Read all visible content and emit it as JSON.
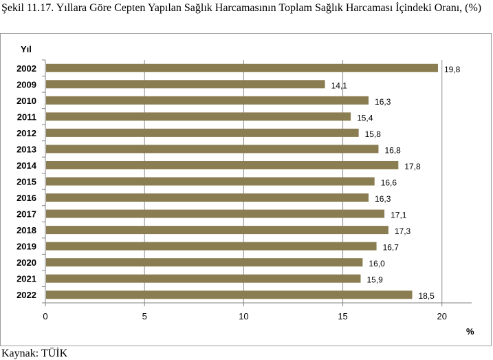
{
  "title": "Şekil 11.17. Yıllara Göre Cepten Yapılan Sağlık Harcamasının Toplam Sağlık Harcaması İçindeki Oranı, (%)",
  "source": "Kaynak: TÜİK",
  "colors": {
    "bar": "#8b7d52",
    "grid": "#8c8c8c",
    "axis": "#808080"
  },
  "chart_data": {
    "type": "bar",
    "orientation": "horizontal",
    "categories": [
      "2002",
      "2009",
      "2010",
      "2011",
      "2012",
      "2013",
      "2014",
      "2015",
      "2016",
      "2017",
      "2018",
      "2019",
      "2020",
      "2021",
      "2022"
    ],
    "values": [
      19.8,
      14.1,
      16.3,
      15.4,
      15.8,
      16.8,
      17.8,
      16.6,
      16.3,
      17.1,
      17.3,
      16.7,
      16.0,
      15.9,
      18.5
    ],
    "data_labels": [
      "19,8",
      "14,1",
      "16,3",
      "15,4",
      "15,8",
      "16,8",
      "17,8",
      "16,6",
      "16,3",
      "17,1",
      "17,3",
      "16,7",
      "16,0",
      "15,9",
      "18,5"
    ],
    "ylabel": "Yıl",
    "xlabel": "%",
    "xlim": [
      0,
      21.5
    ],
    "xticks": [
      0,
      5,
      10,
      15,
      20
    ],
    "grid": true
  }
}
